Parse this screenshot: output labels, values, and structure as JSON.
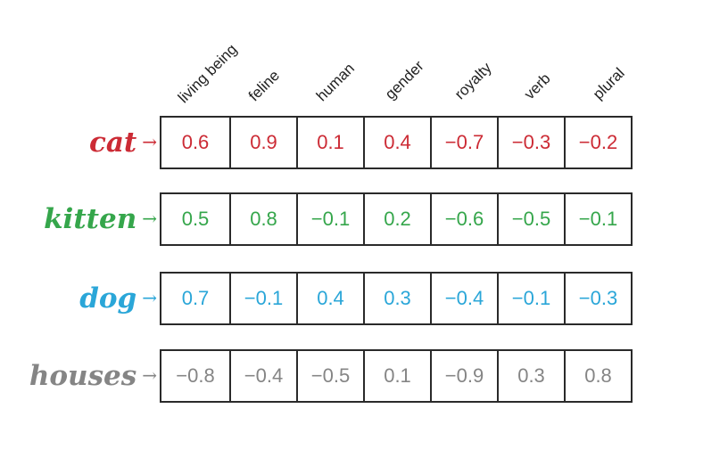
{
  "columns": [
    "living being",
    "feline",
    "human",
    "gender",
    "royalty",
    "verb",
    "plural"
  ],
  "rows": [
    {
      "word": "cat",
      "arrow": "→",
      "color": "#cc2b35",
      "values": [
        "0.6",
        "0.9",
        "0.1",
        "0.4",
        "−0.7",
        "−0.3",
        "−0.2"
      ]
    },
    {
      "word": "kitten",
      "arrow": "→",
      "color": "#35a64b",
      "values": [
        "0.5",
        "0.8",
        "−0.1",
        "0.2",
        "−0.6",
        "−0.5",
        "−0.1"
      ]
    },
    {
      "word": "dog",
      "arrow": "→",
      "color": "#2aa6d8",
      "values": [
        "0.7",
        "−0.1",
        "0.4",
        "0.3",
        "−0.4",
        "−0.1",
        "−0.3"
      ]
    },
    {
      "word": "houses",
      "arrow": "→",
      "color": "#858585",
      "values": [
        "−0.8",
        "−0.4",
        "−0.5",
        "0.1",
        "−0.9",
        "0.3",
        "0.8"
      ]
    }
  ]
}
